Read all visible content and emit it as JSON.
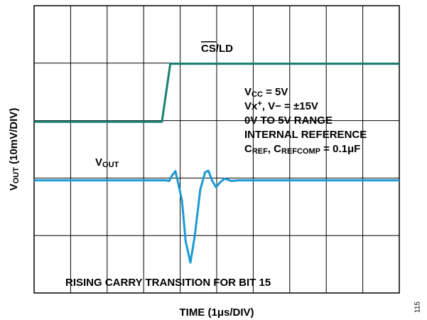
{
  "chart_data": {
    "type": "line",
    "xlabel": [
      {
        "text": "TIME (1μs/DIV)"
      }
    ],
    "ylabel": [
      {
        "text": "V"
      },
      {
        "text": "OUT",
        "sub": true
      },
      {
        "text": " (10mV/DIV)"
      }
    ],
    "xlim": [
      0,
      10
    ],
    "xticks": [
      0,
      1,
      2,
      3,
      4,
      5,
      6,
      7,
      8,
      9,
      10
    ],
    "ylim": [
      0,
      5
    ],
    "yticks": [
      0,
      1,
      2,
      3,
      4,
      5
    ],
    "grid": true,
    "series": [
      {
        "name": [
          {
            "text": "CS",
            "overline": true
          },
          {
            "text": "/LD"
          }
        ],
        "color": "#17806f",
        "x": [
          0,
          3.5,
          3.73,
          10
        ],
        "values": [
          2.98,
          2.98,
          3.99,
          3.99
        ]
      },
      {
        "name": [
          {
            "text": "V"
          },
          {
            "text": "OUT",
            "sub": true
          }
        ],
        "color": "#1b9ad6",
        "x": [
          0,
          3.6,
          3.7,
          3.78,
          3.87,
          3.95,
          4.05,
          4.15,
          4.28,
          4.4,
          4.55,
          4.68,
          4.77,
          4.88,
          4.98,
          5.1,
          5.22,
          5.4,
          5.6,
          10
        ],
        "values": [
          1.96,
          1.96,
          1.95,
          2.05,
          2.12,
          1.9,
          1.6,
          0.9,
          0.53,
          1.0,
          1.8,
          2.1,
          2.13,
          1.95,
          1.84,
          1.93,
          1.99,
          1.95,
          1.96,
          1.96
        ]
      }
    ],
    "annotations": [
      [
        {
          "text": "V"
        },
        {
          "text": "CC",
          "sub": true
        },
        {
          "text": " = 5V"
        }
      ],
      [
        {
          "text": "Vx"
        },
        {
          "text": "+",
          "sup": true
        },
        {
          "text": ", V− = ±15V"
        }
      ],
      [
        {
          "text": "0V TO 5V RANGE"
        }
      ],
      [
        {
          "text": "INTERNAL REFERENCE"
        }
      ],
      [
        {
          "text": "C"
        },
        {
          "text": "REF",
          "sub": true
        },
        {
          "text": ", C"
        },
        {
          "text": "REFCOMP",
          "sub": true
        },
        {
          "text": " = 0.1μF"
        }
      ],
      [
        {
          "text": "RISING CARRY TRANSITION FOR BIT 15"
        }
      ]
    ],
    "figure_number": "115"
  }
}
